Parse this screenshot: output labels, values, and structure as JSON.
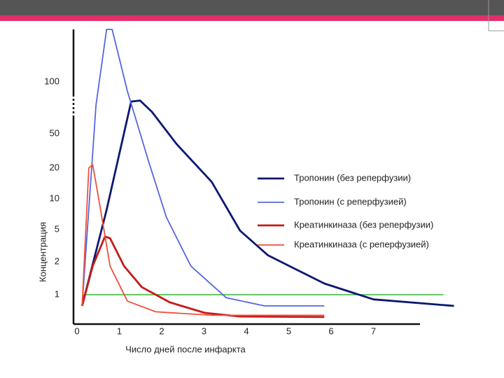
{
  "chart_data": {
    "type": "line",
    "xlabel": "Число дней после инфаркта",
    "ylabel": "Концентрация",
    "xlim": [
      0,
      8
    ],
    "xticks": [
      0,
      1,
      2,
      3,
      4,
      5,
      6,
      7
    ],
    "ylim": [
      0.5,
      200
    ],
    "yticks": [
      1,
      2,
      5,
      10,
      20,
      50,
      100
    ],
    "hline": {
      "y": 1,
      "x": [
        0.15,
        8.65
      ],
      "color": "#33b533"
    },
    "series": [
      {
        "name": "Тропонин (без реперфузии)",
        "color": "#0b1870",
        "x": [
          0.12,
          0.7,
          1.28,
          1.49,
          1.77,
          2.35,
          3.18,
          3.85,
          4.51,
          5.17,
          5.84,
          7.0,
          8.9
        ],
        "values": [
          0.81,
          8.2,
          81,
          82,
          71,
          41,
          15.5,
          4.9,
          2.6,
          1.77,
          1.34,
          0.92,
          0.81
        ]
      },
      {
        "name": "Тропонин (с реперфузией)",
        "color": "#5566e0",
        "x": [
          0.12,
          0.45,
          0.7,
          0.83,
          1.19,
          1.69,
          2.11,
          2.69,
          3.52,
          4.43,
          5.84
        ],
        "values": [
          0.81,
          78,
          200,
          200,
          91,
          26,
          7,
          1.87,
          0.95,
          0.81,
          0.81
        ]
      },
      {
        "name": "Креатинкиназа (без реперфузии)",
        "color": "#c41a1a",
        "x": [
          0.12,
          0.37,
          0.66,
          0.78,
          1.11,
          1.53,
          2.19,
          3.02,
          3.85,
          5.84
        ],
        "values": [
          0.81,
          1.87,
          4.35,
          4.2,
          1.87,
          1.23,
          0.87,
          0.69,
          0.63,
          0.62
        ]
      },
      {
        "name": "Креатинкиназа (с реперфузией)",
        "color": "#f0503c",
        "x": [
          0.12,
          0.28,
          0.37,
          0.53,
          0.78,
          1.19,
          1.86,
          3.18,
          5.84
        ],
        "values": [
          0.81,
          20,
          23,
          9.3,
          1.87,
          0.89,
          0.71,
          0.65,
          0.65
        ]
      }
    ]
  }
}
